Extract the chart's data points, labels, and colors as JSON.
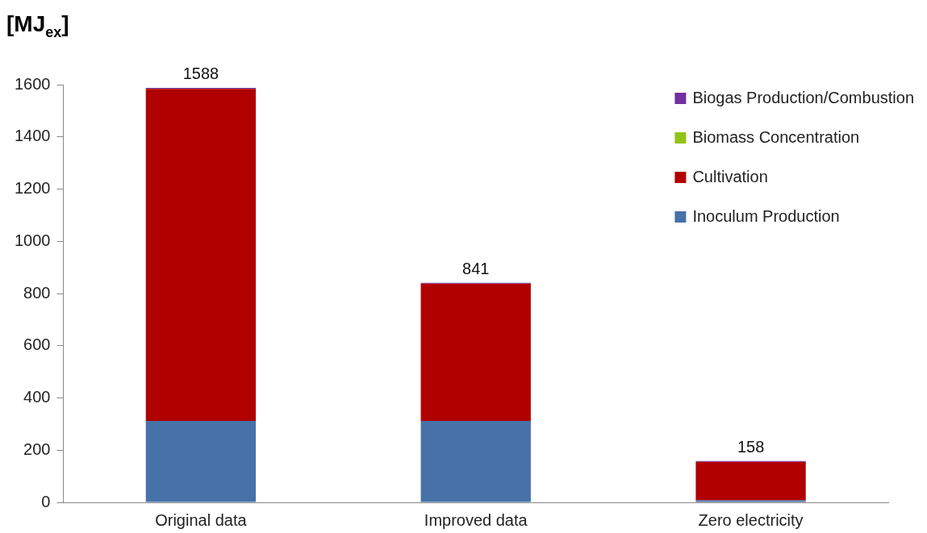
{
  "chart_data": {
    "type": "bar",
    "ylabel": "[MJ$_{ex}$]",
    "stacked": true,
    "categories": [
      "Original data",
      "Improved data",
      "Zero electricity"
    ],
    "series": [
      {
        "name": "Inoculum Production",
        "color": "#4672a8",
        "values": [
          312,
          312,
          8
        ]
      },
      {
        "name": "Cultivation",
        "color": "#b00000",
        "values": [
          1272,
          526,
          147
        ]
      },
      {
        "name": "Biomass Concentration",
        "color": "#92c418",
        "values": [
          0,
          0,
          0
        ]
      },
      {
        "name": "Biogas Production/Combustion",
        "color": "#7030a0",
        "values": [
          4,
          3,
          3
        ]
      }
    ],
    "totals": [
      "1588",
      "841",
      "158"
    ],
    "ylim": [
      0,
      1600
    ],
    "yticks": [
      0,
      200,
      400,
      600,
      800,
      1000,
      1200,
      1400,
      1600
    ],
    "grid": false,
    "legend": "top right"
  }
}
